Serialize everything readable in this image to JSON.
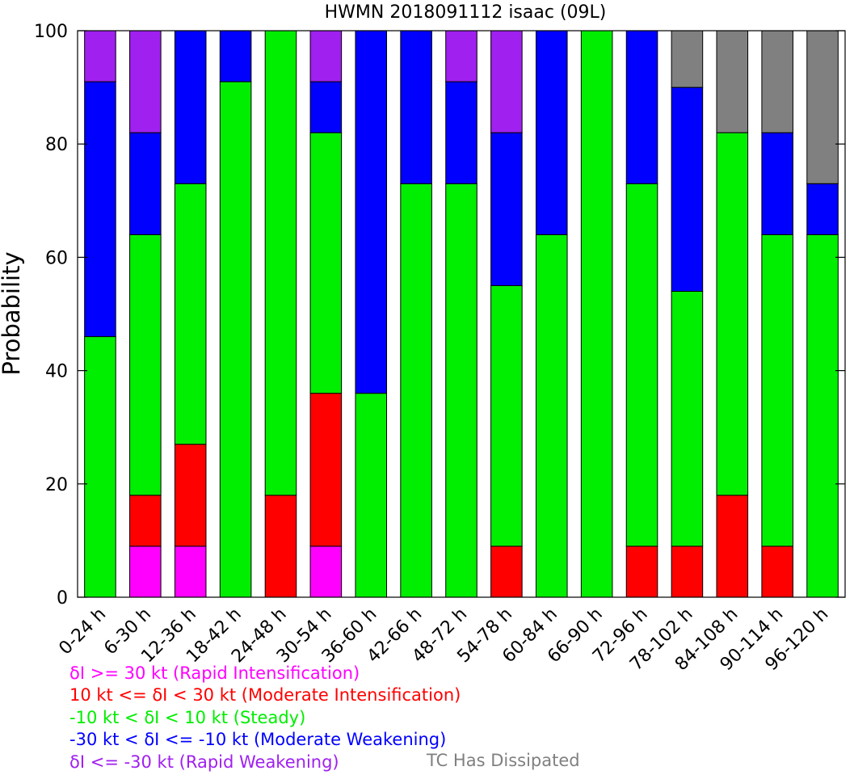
{
  "chart_data": {
    "type": "bar",
    "stacked": true,
    "title": "HWMN 2018091112 isaac (09L)",
    "xlabel": "",
    "ylabel": "Probability",
    "ylim": [
      0,
      100
    ],
    "yticks": [
      "0",
      "20",
      "40",
      "60",
      "80",
      "100"
    ],
    "grid": false,
    "legend_placement": "bottom-left",
    "categories": [
      "0-24 h",
      "6-30 h",
      "12-36 h",
      "18-42 h",
      "24-48 h",
      "30-54 h",
      "36-60 h",
      "42-66 h",
      "48-72 h",
      "54-78 h",
      "60-84 h",
      "66-90 h",
      "72-96 h",
      "78-102 h",
      "84-108 h",
      "90-114 h",
      "96-120 h"
    ],
    "series": [
      {
        "name": "δI >= 30 kt (Rapid Intensification)",
        "color": "#ff00ff",
        "values": [
          0,
          9,
          9,
          0,
          0,
          9,
          0,
          0,
          0,
          0,
          0,
          0,
          0,
          0,
          0,
          0,
          0
        ]
      },
      {
        "name": "10 kt <= δI < 30 kt (Moderate Intensification)",
        "color": "#ff0000",
        "values": [
          0,
          9,
          18,
          0,
          18,
          27,
          0,
          0,
          0,
          9,
          0,
          0,
          9,
          9,
          18,
          9,
          0
        ]
      },
      {
        "name": "-10 kt < δI < 10 kt (Steady)",
        "color": "#00ee00",
        "values": [
          46,
          46,
          46,
          91,
          82,
          46,
          36,
          73,
          73,
          46,
          64,
          100,
          64,
          45,
          64,
          55,
          64
        ]
      },
      {
        "name": "-30 kt < δI <= -10 kt (Moderate Weakening)",
        "color": "#0000ff",
        "values": [
          45,
          18,
          27,
          9,
          0,
          9,
          64,
          27,
          18,
          27,
          36,
          0,
          27,
          36,
          0,
          18,
          9
        ]
      },
      {
        "name": "δI <= -30 kt (Rapid Weakening)",
        "color": "#a020f0",
        "values": [
          9,
          18,
          0,
          0,
          0,
          9,
          0,
          0,
          9,
          18,
          0,
          0,
          0,
          0,
          0,
          0,
          0
        ]
      },
      {
        "name": "TC Has Dissipated",
        "color": "#808080",
        "values": [
          0,
          0,
          0,
          0,
          0,
          0,
          0,
          0,
          0,
          0,
          0,
          0,
          0,
          10,
          18,
          18,
          27
        ]
      }
    ]
  }
}
